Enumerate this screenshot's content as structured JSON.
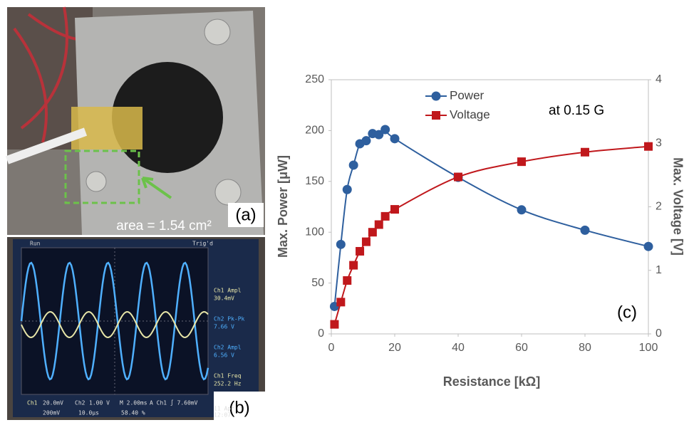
{
  "photo_a": {
    "area": "area = 1.54 cm²",
    "label": "(a)"
  },
  "photo_b": {
    "label": "(b)",
    "header": [
      "Run",
      "Trig'd"
    ],
    "readouts": [
      "Ch1 Ampl",
      "30.4mV",
      "Ch2 Pk-Pk",
      "7.66 V",
      "Ch2 Ampl",
      "6.56 V",
      "Ch1 Freq",
      "252.2 Hz"
    ],
    "footer": [
      "Ch1",
      "20.0mV",
      "Ch2",
      "1.00 V",
      "M 2.00ms",
      "A Ch1 ∫ 7.60mV",
      "11 Apr",
      "12:07",
      "200mV",
      "10.0µs",
      "58.40 %"
    ]
  },
  "chart_data": {
    "type": "line",
    "x_label": "Resistance [kΩ]",
    "y_label": "Max. Power [μW]",
    "y2_label": "Max. Voltage [V]",
    "annotation": "at 0.15 G",
    "panel_label": "(c)",
    "x": [
      1,
      3,
      5,
      7,
      9,
      11,
      13,
      15,
      17,
      20,
      40,
      60,
      80,
      100
    ],
    "series": [
      {
        "name": "Power",
        "color": "#2e5f9e",
        "marker": "circle",
        "values": [
          27,
          88,
          142,
          166,
          187,
          190,
          197,
          196,
          201,
          192,
          154,
          122,
          102,
          86
        ]
      },
      {
        "name": "Voltage",
        "color": "#c0181c",
        "marker": "square",
        "axis": "y2",
        "values": [
          0.15,
          0.5,
          0.84,
          1.08,
          1.3,
          1.45,
          1.6,
          1.72,
          1.85,
          1.96,
          2.47,
          2.71,
          2.86,
          2.95
        ]
      }
    ],
    "xlim": [
      0,
      100
    ],
    "xticks": [
      0,
      20,
      40,
      60,
      80,
      100
    ],
    "ylim": [
      0,
      250
    ],
    "yticks": [
      0,
      50,
      100,
      150,
      200,
      250
    ],
    "y2lim": [
      0,
      4
    ],
    "y2ticks": [
      0,
      1,
      2,
      3,
      4
    ]
  }
}
